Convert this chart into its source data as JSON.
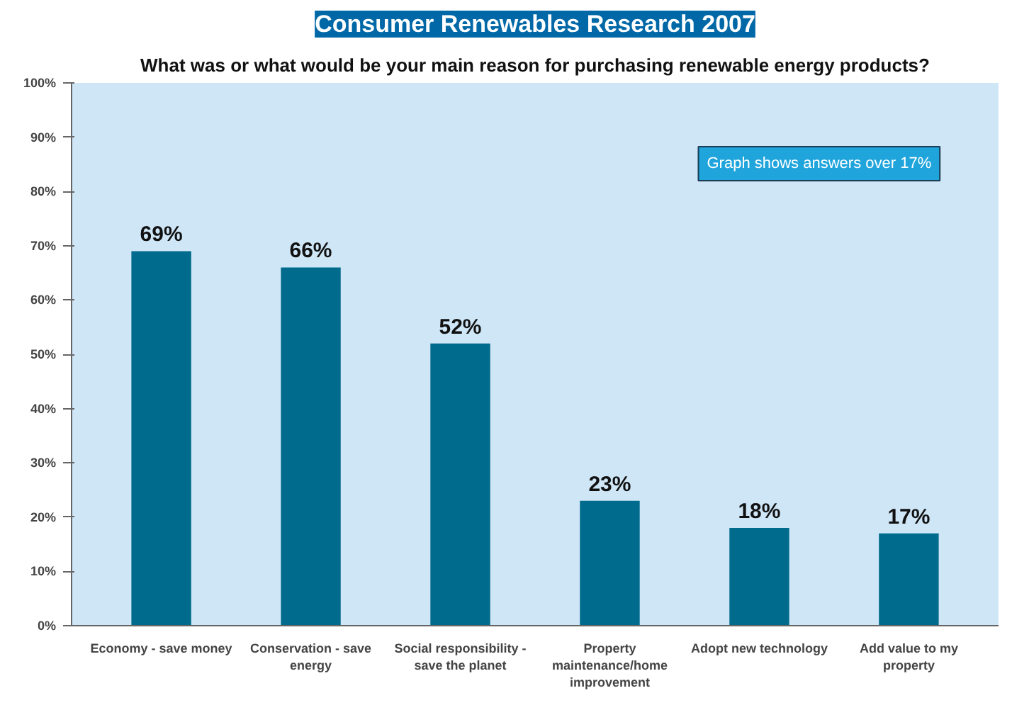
{
  "chart_data": {
    "type": "bar",
    "title": "Consumer Renewables Research 2007",
    "subtitle": "What was or what would be your main reason for purchasing renewable energy products?",
    "categories": [
      "Economy - save money",
      "Conservation - save energy",
      "Social responsibility - save the planet",
      "Property maintenance/home improvement",
      "Adopt new technology",
      "Add value to my property"
    ],
    "values": [
      69,
      66,
      52,
      23,
      18,
      17
    ],
    "color": "#006b8c",
    "ylim": [
      0,
      100
    ],
    "yticks": [
      {
        "value": 0,
        "label": "0%"
      },
      {
        "value": 10,
        "label": "10%"
      },
      {
        "value": 20,
        "label": "20%"
      },
      {
        "value": 30,
        "label": "30%"
      },
      {
        "value": 40,
        "label": "40%"
      },
      {
        "value": 50,
        "label": "50%"
      },
      {
        "value": 60,
        "label": "60%"
      },
      {
        "value": 70,
        "label": "70%"
      },
      {
        "value": 80,
        "label": "80%"
      },
      {
        "value": 90,
        "label": "90%"
      },
      {
        "value": 100,
        "label": "100%"
      }
    ],
    "value_labels": [
      "69%",
      "66%",
      "52%",
      "23%",
      "18%",
      "17%"
    ],
    "annotations": [
      "Graph shows answers over 17%"
    ],
    "grid": false
  }
}
